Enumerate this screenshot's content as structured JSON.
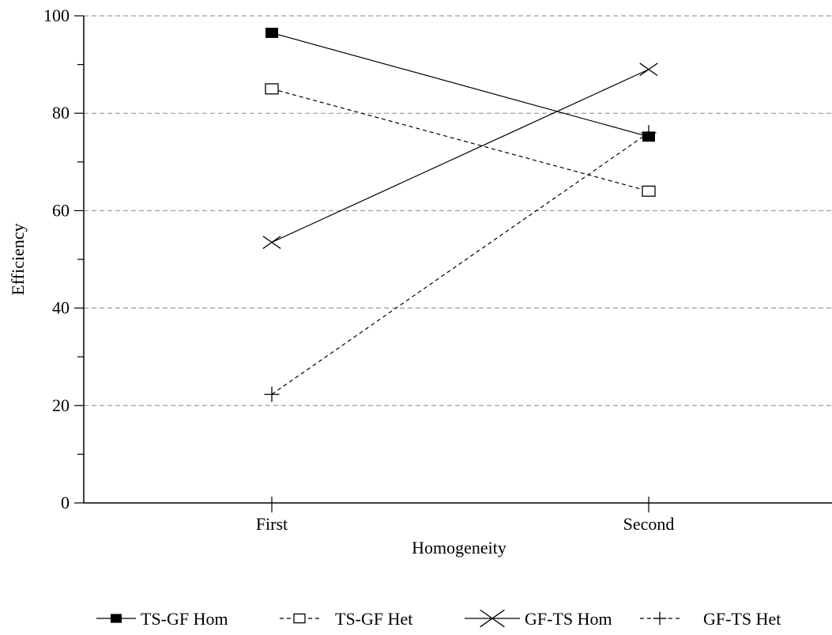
{
  "chart_data": {
    "type": "line",
    "title": "",
    "xlabel": "Homogeneity",
    "ylabel": "Efficiency",
    "categories": [
      "First",
      "Second"
    ],
    "ylim": [
      0,
      100
    ],
    "yticks": [
      "0",
      "20",
      "40",
      "60",
      "80",
      "100"
    ],
    "grid": "horizontal dashed",
    "legend_position": "bottom",
    "series": [
      {
        "name": "TS-GF Hom",
        "values": [
          96.5,
          75.2
        ],
        "marker": "filled-square",
        "line": "solid",
        "color": "#000000"
      },
      {
        "name": "TS-GF Het",
        "values": [
          85.0,
          64.0
        ],
        "marker": "open-square",
        "line": "dashed",
        "color": "#000000"
      },
      {
        "name": "GF-TS Hom",
        "values": [
          53.5,
          89.0
        ],
        "marker": "x",
        "line": "solid",
        "color": "#000000"
      },
      {
        "name": "GF-TS Het",
        "values": [
          22.3,
          76.0
        ],
        "marker": "plus",
        "line": "dashed",
        "color": "#000000"
      }
    ]
  }
}
